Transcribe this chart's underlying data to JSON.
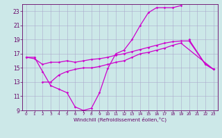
{
  "bg_color": "#cce8e8",
  "line_color": "#cc00cc",
  "grid_color": "#aaaacc",
  "spine_color": "#660066",
  "xlabel": "Windchill (Refroidissement éolien,°C)",
  "xlim": [
    -0.5,
    23.5
  ],
  "ylim": [
    9,
    24
  ],
  "xticks": [
    0,
    1,
    2,
    3,
    4,
    5,
    6,
    7,
    8,
    9,
    10,
    11,
    12,
    13,
    14,
    15,
    16,
    17,
    18,
    19,
    20,
    21,
    22,
    23
  ],
  "yticks": [
    9,
    11,
    13,
    15,
    17,
    19,
    21,
    23
  ],
  "lines": [
    {
      "x": [
        0,
        1,
        2,
        3,
        4,
        5,
        6,
        7,
        8,
        9,
        10,
        11,
        12,
        13,
        14,
        15,
        16,
        17,
        18,
        19
      ],
      "y": [
        16.5,
        16.5,
        14.5,
        12.5,
        12.0,
        11.5,
        9.5,
        9.0,
        9.3,
        11.5,
        14.9,
        17.0,
        17.5,
        19.0,
        21.0,
        22.8,
        23.5,
        23.5,
        23.5,
        23.8
      ]
    },
    {
      "x": [
        0,
        1,
        2,
        3,
        4,
        5,
        6,
        7,
        8,
        9,
        10,
        11,
        12,
        13,
        14,
        15,
        16,
        17,
        18,
        19,
        20,
        22,
        23
      ],
      "y": [
        16.5,
        16.3,
        15.5,
        15.8,
        15.8,
        16.0,
        15.8,
        16.0,
        16.2,
        16.3,
        16.5,
        16.8,
        17.0,
        17.3,
        17.6,
        17.9,
        18.2,
        18.5,
        18.7,
        18.8,
        18.8,
        15.5,
        14.8
      ]
    },
    {
      "x": [
        2,
        3,
        4,
        5,
        6,
        7,
        8,
        9,
        10,
        11,
        12,
        13,
        14,
        15,
        16,
        17,
        18,
        19,
        23
      ],
      "y": [
        13.0,
        13.0,
        14.0,
        14.5,
        14.8,
        15.0,
        15.0,
        15.2,
        15.5,
        15.8,
        16.0,
        16.5,
        17.0,
        17.2,
        17.5,
        17.8,
        18.2,
        18.5,
        14.8
      ]
    },
    {
      "x": [
        20,
        22,
        23
      ],
      "y": [
        19.0,
        15.5,
        14.8
      ]
    }
  ]
}
